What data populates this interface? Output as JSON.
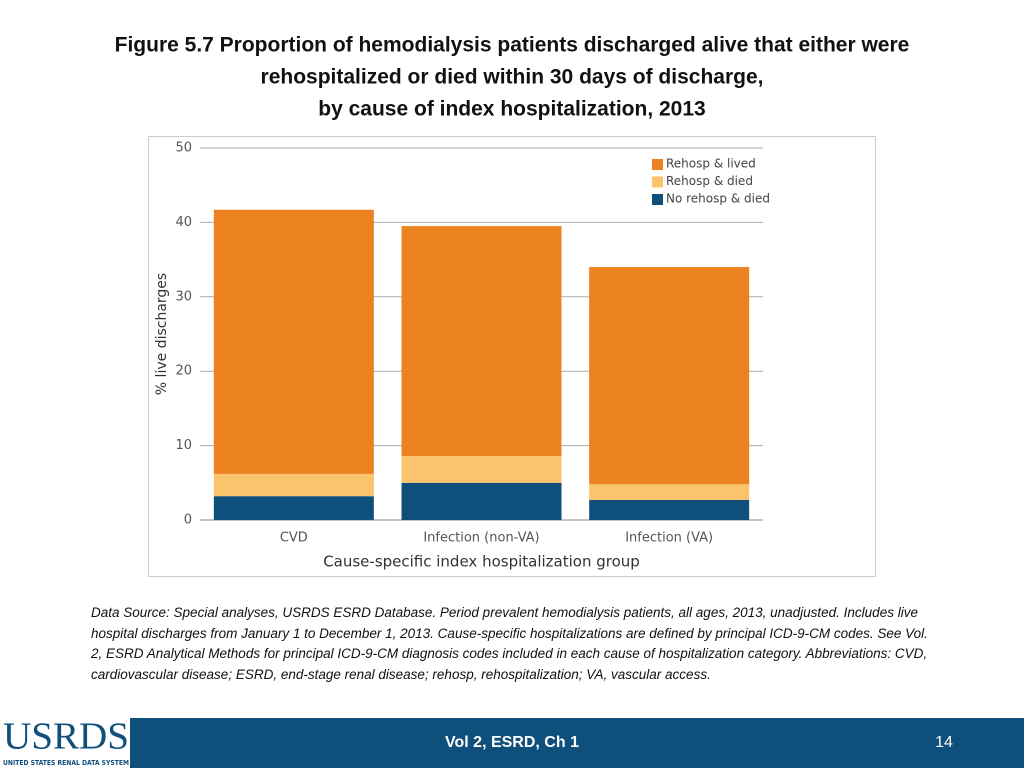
{
  "chart_data": {
    "type": "stacked-bar",
    "title": [
      "Figure 5.7 Proportion of hemodialysis patients discharged alive that either were",
      "rehospitalized or died within 30 days of discharge,",
      "by cause of index hospitalization, 2013"
    ],
    "x_label": "Cause-specific index hospitalization group",
    "y_label": "% live discharges",
    "categories": [
      "CVD",
      "Infection (non-VA)",
      "Infection (VA)"
    ],
    "series": [
      {
        "name": "No rehosp & died",
        "color": "#0e4f7c",
        "values": [
          3.2,
          5.0,
          2.7
        ]
      },
      {
        "name": "Rehosp & died",
        "color": "#fbc36b",
        "values": [
          3.0,
          3.6,
          2.1
        ]
      },
      {
        "name": "Rehosp & lived",
        "color": "#ec8220",
        "values": [
          35.5,
          30.9,
          29.2
        ]
      }
    ],
    "ylim": [
      0,
      50
    ],
    "yticks": [
      0,
      10,
      20,
      30,
      40,
      50
    ],
    "grid": true,
    "legend": "top-right"
  },
  "footnote": "Data Source: Special analyses, USRDS ESRD Database. Period prevalent hemodialysis patients, all ages, 2013, unadjusted. Includes live hospital discharges from January 1 to December 1, 2013. Cause-specific hospitalizations are defined by principal ICD-9-CM codes. See Vol. 2, ESRD Analytical Methods for principal ICD-9-CM diagnosis codes included in each cause of hospitalization category. Abbreviations: CVD, cardiovascular disease; ESRD, end-stage renal disease; rehosp, rehospitalization; VA, vascular access.",
  "footer": {
    "section": "Vol 2, ESRD, Ch 1",
    "page": "14"
  },
  "logo": {
    "name": "USRDS",
    "full_name": "UNITED STATES RENAL DATA SYSTEM"
  }
}
